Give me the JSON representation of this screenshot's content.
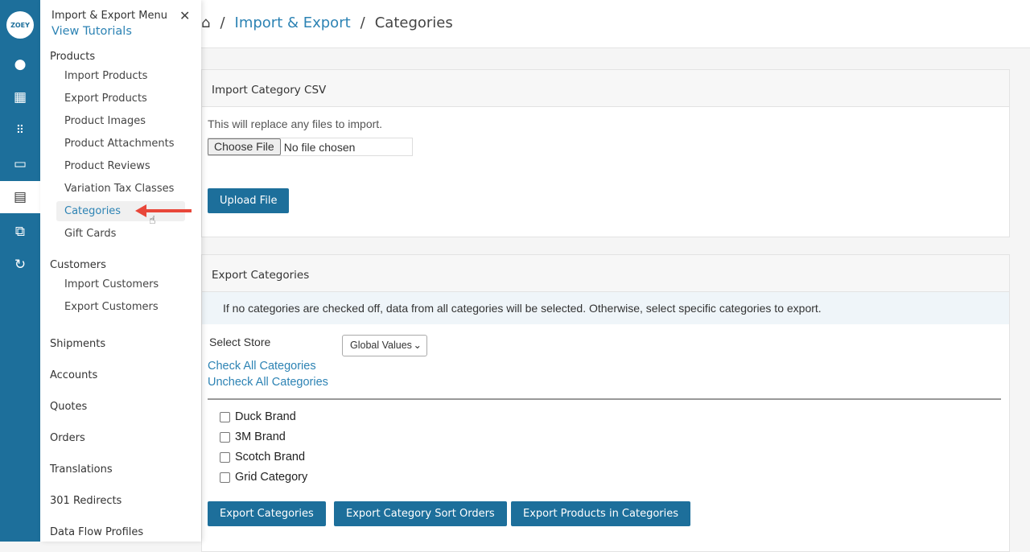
{
  "rail": {
    "logo": "ZOEY",
    "items": [
      "user-icon",
      "store-icon",
      "apps-grid-icon",
      "folder-icon",
      "spreadsheet-icon",
      "puzzle-icon",
      "refresh-icon"
    ]
  },
  "drawer": {
    "title": "Import & Export Menu",
    "tutorials": "View Tutorials",
    "close": "✕",
    "products_label": "Products",
    "products": [
      "Import Products",
      "Export Products",
      "Product Images",
      "Product Attachments",
      "Product Reviews",
      "Variation Tax Classes",
      "Categories",
      "Gift Cards"
    ],
    "customers_label": "Customers",
    "customers": [
      "Import Customers",
      "Export Customers"
    ],
    "sections": [
      "Shipments",
      "Accounts",
      "Quotes",
      "Orders",
      "Translations",
      "301 Redirects",
      "Data Flow Profiles"
    ]
  },
  "breadcrumb": {
    "home": "⌂",
    "sep": "/",
    "parent": "Import & Export",
    "current": "Categories"
  },
  "import": {
    "title": "Import Category CSV",
    "note": "This will replace any files to import.",
    "choose": "Choose File",
    "file": "No file chosen",
    "upload": "Upload File"
  },
  "export": {
    "title": "Export Categories",
    "info": "If no categories are checked off, data from all categories will be selected. Otherwise, select specific categories to export.",
    "store_label": "Select Store",
    "store_value": "Global Values",
    "check_all": "Check All Categories",
    "uncheck_all": "Uncheck All Categories",
    "categories": [
      "Duck Brand",
      "3M Brand",
      "Scotch Brand",
      "Grid Category"
    ],
    "buttons": [
      "Export Categories",
      "Export Category Sort Orders",
      "Export Products in Categories"
    ]
  },
  "colors": {
    "brand": "#1d6f9b",
    "link": "#2d83b4",
    "arrow": "#e8473a"
  }
}
